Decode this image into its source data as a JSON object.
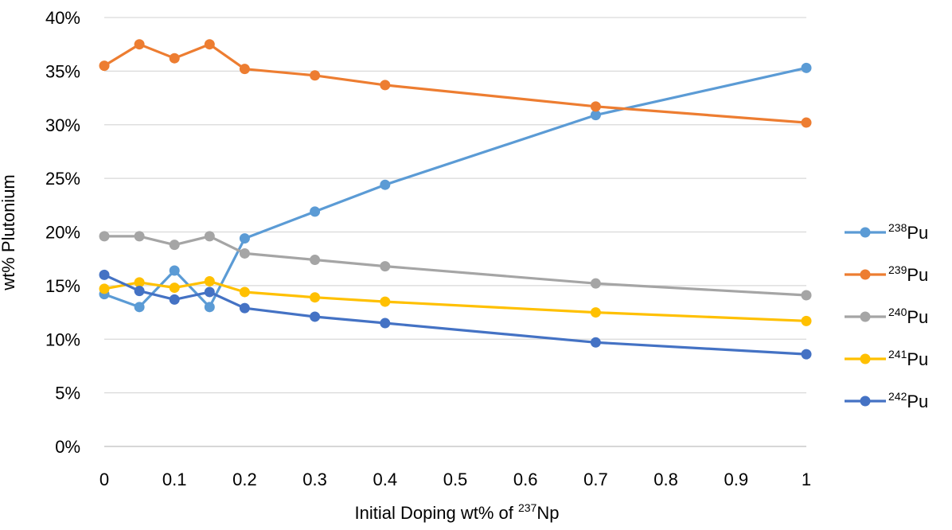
{
  "chart_data": {
    "type": "line",
    "xlabel": {
      "prefix": "Initial Doping wt% of ",
      "sup": "237",
      "suffix": "Np"
    },
    "ylabel": "wt% Plutonium",
    "xlim": [
      0,
      1
    ],
    "ylim": [
      0,
      40
    ],
    "x_ticks": [
      0,
      0.1,
      0.2,
      0.3,
      0.4,
      0.5,
      0.6,
      0.7,
      0.8,
      0.9,
      1
    ],
    "x_tick_labels": [
      "0",
      "0.1",
      "0.2",
      "0.3",
      "0.4",
      "0.5",
      "0.6",
      "0.7",
      "0.8",
      "0.9",
      "1"
    ],
    "y_ticks": [
      0,
      5,
      10,
      15,
      20,
      25,
      30,
      35,
      40
    ],
    "y_tick_labels": [
      "0%",
      "5%",
      "10%",
      "15%",
      "20%",
      "25%",
      "30%",
      "35%",
      "40%"
    ],
    "grid": "horizontal",
    "legend_position": "right",
    "x": [
      0,
      0.05,
      0.1,
      0.15,
      0.2,
      0.3,
      0.4,
      0.7,
      1
    ],
    "series": [
      {
        "name": "Pu",
        "sup": "238",
        "color": "#5B9BD5",
        "values": [
          14.2,
          13.0,
          16.4,
          13.0,
          19.4,
          21.9,
          24.4,
          30.9,
          35.3
        ]
      },
      {
        "name": "Pu",
        "sup": "239",
        "color": "#ED7D31",
        "values": [
          35.5,
          37.5,
          36.2,
          37.5,
          35.2,
          34.6,
          33.7,
          31.7,
          30.2
        ]
      },
      {
        "name": "Pu",
        "sup": "240",
        "color": "#A5A5A5",
        "values": [
          19.6,
          19.6,
          18.8,
          19.6,
          18.0,
          17.4,
          16.8,
          15.2,
          14.1
        ]
      },
      {
        "name": "Pu",
        "sup": "241",
        "color": "#FFC000",
        "values": [
          14.7,
          15.3,
          14.8,
          15.4,
          14.4,
          13.9,
          13.5,
          12.5,
          11.7
        ]
      },
      {
        "name": "Pu",
        "sup": "242",
        "color": "#4472C4",
        "values": [
          16.0,
          14.5,
          13.7,
          14.4,
          12.9,
          12.1,
          11.5,
          9.7,
          8.6
        ]
      }
    ]
  }
}
